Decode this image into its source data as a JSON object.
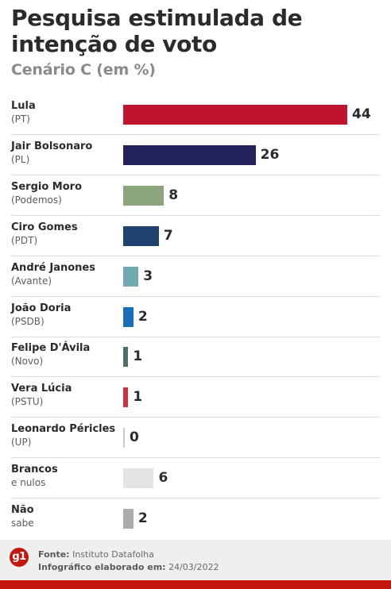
{
  "header": {
    "title": "Pesquisa estimulada de intenção de voto",
    "subtitle": "Cenário C (em %)"
  },
  "footer": {
    "logo": "g1",
    "source_label": "Fonte:",
    "source_value": "Instituto Datafolha",
    "made_label": "Infográfico elaborado em:",
    "made_value": "24/03/2022"
  },
  "chart_data": {
    "type": "bar",
    "orientation": "horizontal",
    "categories": [
      "Lula",
      "Jair Bolsonaro",
      "Sergio Moro",
      "Ciro Gomes",
      "André Janones",
      "João Doria",
      "Felipe D'Ávila",
      "Vera Lúcia",
      "Leonardo Péricles",
      "Brancos",
      "Não"
    ],
    "sublabels": [
      "(PT)",
      "(PL)",
      "(Podemos)",
      "(PDT)",
      "(Avante)",
      "(PSDB)",
      " (Novo)",
      "(PSTU)",
      "(UP)",
      "e nulos",
      "sabe"
    ],
    "values": [
      44,
      26,
      8,
      7,
      3,
      2,
      1,
      1,
      0,
      6,
      2
    ],
    "colors": [
      "#c0142e",
      "#22215a",
      "#8aa57c",
      "#21426e",
      "#72aab2",
      "#1b6fb8",
      "#4d6e6c",
      "#c9343e",
      "#c9c9c9",
      "#e4e4e4",
      "#ababab"
    ],
    "xlim": [
      0,
      44
    ],
    "grid": false,
    "legend": "none"
  }
}
